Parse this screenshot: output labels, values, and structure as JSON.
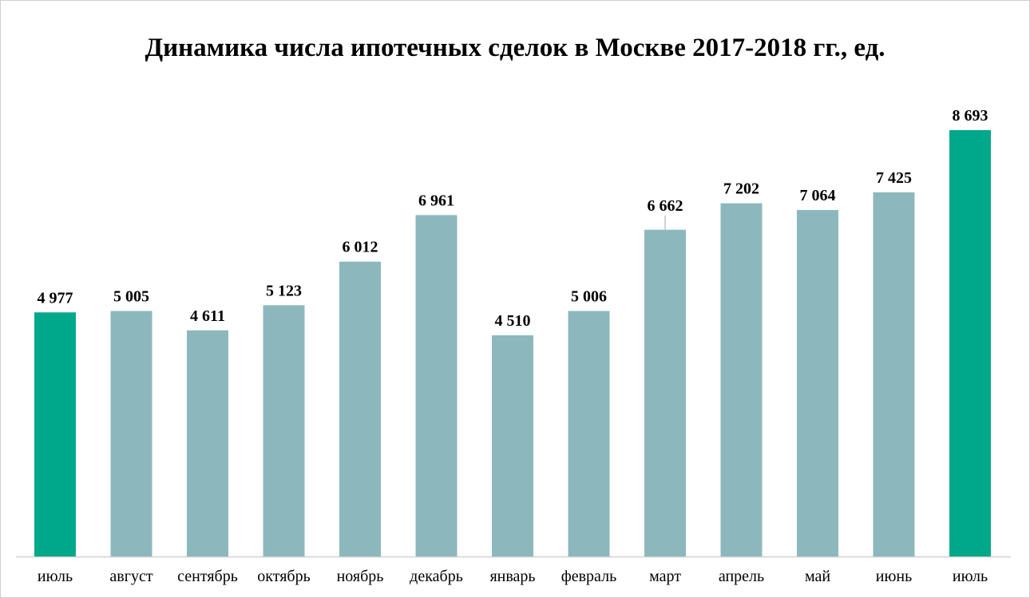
{
  "chart_data": {
    "type": "bar",
    "title": "Динамика числа ипотечных сделок в Москве 2017-2018 гг., ед.",
    "xlabel": "",
    "ylabel": "",
    "categories": [
      "июль",
      "август",
      "сентябрь",
      "октябрь",
      "ноябрь",
      "декабрь",
      "январь",
      "февраль",
      "март",
      "апрель",
      "май",
      "июнь",
      "июль"
    ],
    "values": [
      4977,
      5005,
      4611,
      5123,
      6012,
      6961,
      4510,
      5006,
      6662,
      7202,
      7064,
      7425,
      8693
    ],
    "value_labels": [
      "4 977",
      "5 005",
      "4 611",
      "5 123",
      "6 012",
      "6 961",
      "4 510",
      "5 006",
      "6 662",
      "7 202",
      "7 064",
      "7 425",
      "8 693"
    ],
    "ylim": [
      0,
      9000
    ],
    "grid": false,
    "legend": "none",
    "colors": {
      "default": "#8cb8bd",
      "highlight": "#00a88a",
      "axis": "#d0d0d0",
      "leader": "#a6a6a6"
    },
    "highlight_indices": [
      0,
      12
    ]
  }
}
